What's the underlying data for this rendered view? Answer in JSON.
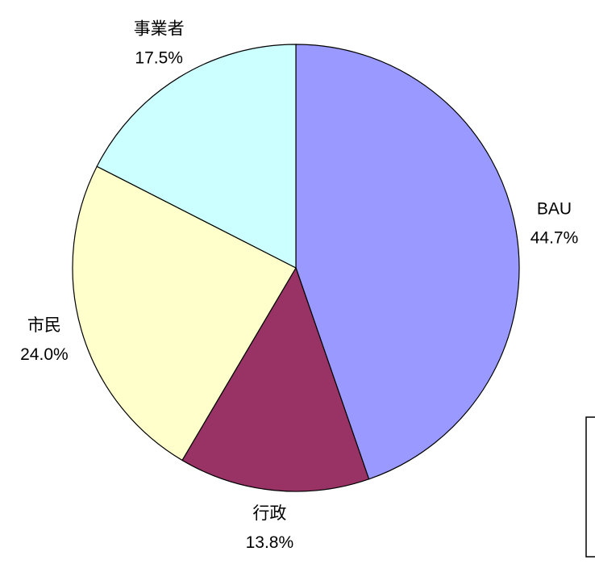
{
  "chart_data": {
    "type": "pie",
    "categories": [
      "BAU",
      "行政",
      "市民",
      "事業者"
    ],
    "values": [
      44.7,
      13.8,
      24.0,
      17.5
    ],
    "value_labels": [
      "44.7%",
      "13.8%",
      "24.0%",
      "17.5%"
    ],
    "colors": [
      "#9999ff",
      "#993366",
      "#ffffcc",
      "#ccffff"
    ]
  }
}
